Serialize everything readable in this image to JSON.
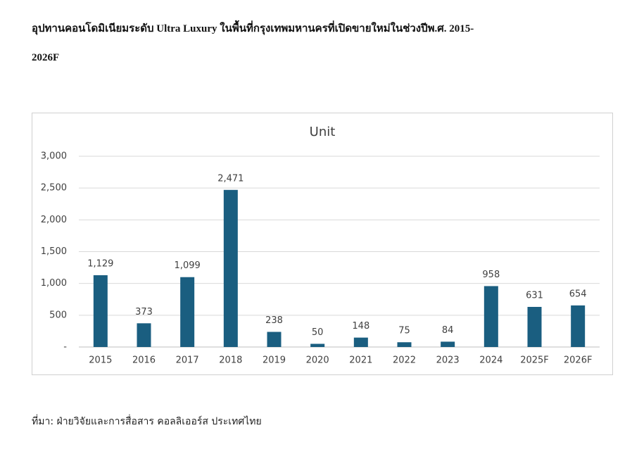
{
  "heading_lines": [
    "อุปทานคอนโดมิเนียมระดับ Ultra Luxury ในพื้นที่กรุงเทพมหานครที่เปิดขายใหม่ในช่วงปีพ.ศ. 2015-",
    "2026F"
  ],
  "chart_data": {
    "type": "bar",
    "title": "Unit",
    "categories": [
      "2015",
      "2016",
      "2017",
      "2018",
      "2019",
      "2020",
      "2021",
      "2022",
      "2023",
      "2024",
      "2025F",
      "2026F"
    ],
    "values": [
      1129,
      373,
      1099,
      2471,
      238,
      50,
      148,
      75,
      84,
      958,
      631,
      654
    ],
    "value_labels": [
      "1,129",
      "373",
      "1,099",
      "2,471",
      "238",
      "50",
      "148",
      "75",
      "84",
      "958",
      "631",
      "654"
    ],
    "color": "#1a5e80",
    "ylim": [
      0,
      3000
    ],
    "yticks": [
      {
        "value": 0,
        "label": "-"
      },
      500,
      {
        "value": 1000,
        "label": "1,000"
      },
      {
        "value": 1500,
        "label": "1,500"
      },
      {
        "value": 2000,
        "label": "2,000"
      },
      {
        "value": 2500,
        "label": "2,500"
      },
      {
        "value": 3000,
        "label": "3,000"
      }
    ],
    "grid": true
  },
  "source": "ที่มา: ฝ่ายวิจัยและการสื่อสาร คอลลิเออร์ส ประเทศไทย"
}
